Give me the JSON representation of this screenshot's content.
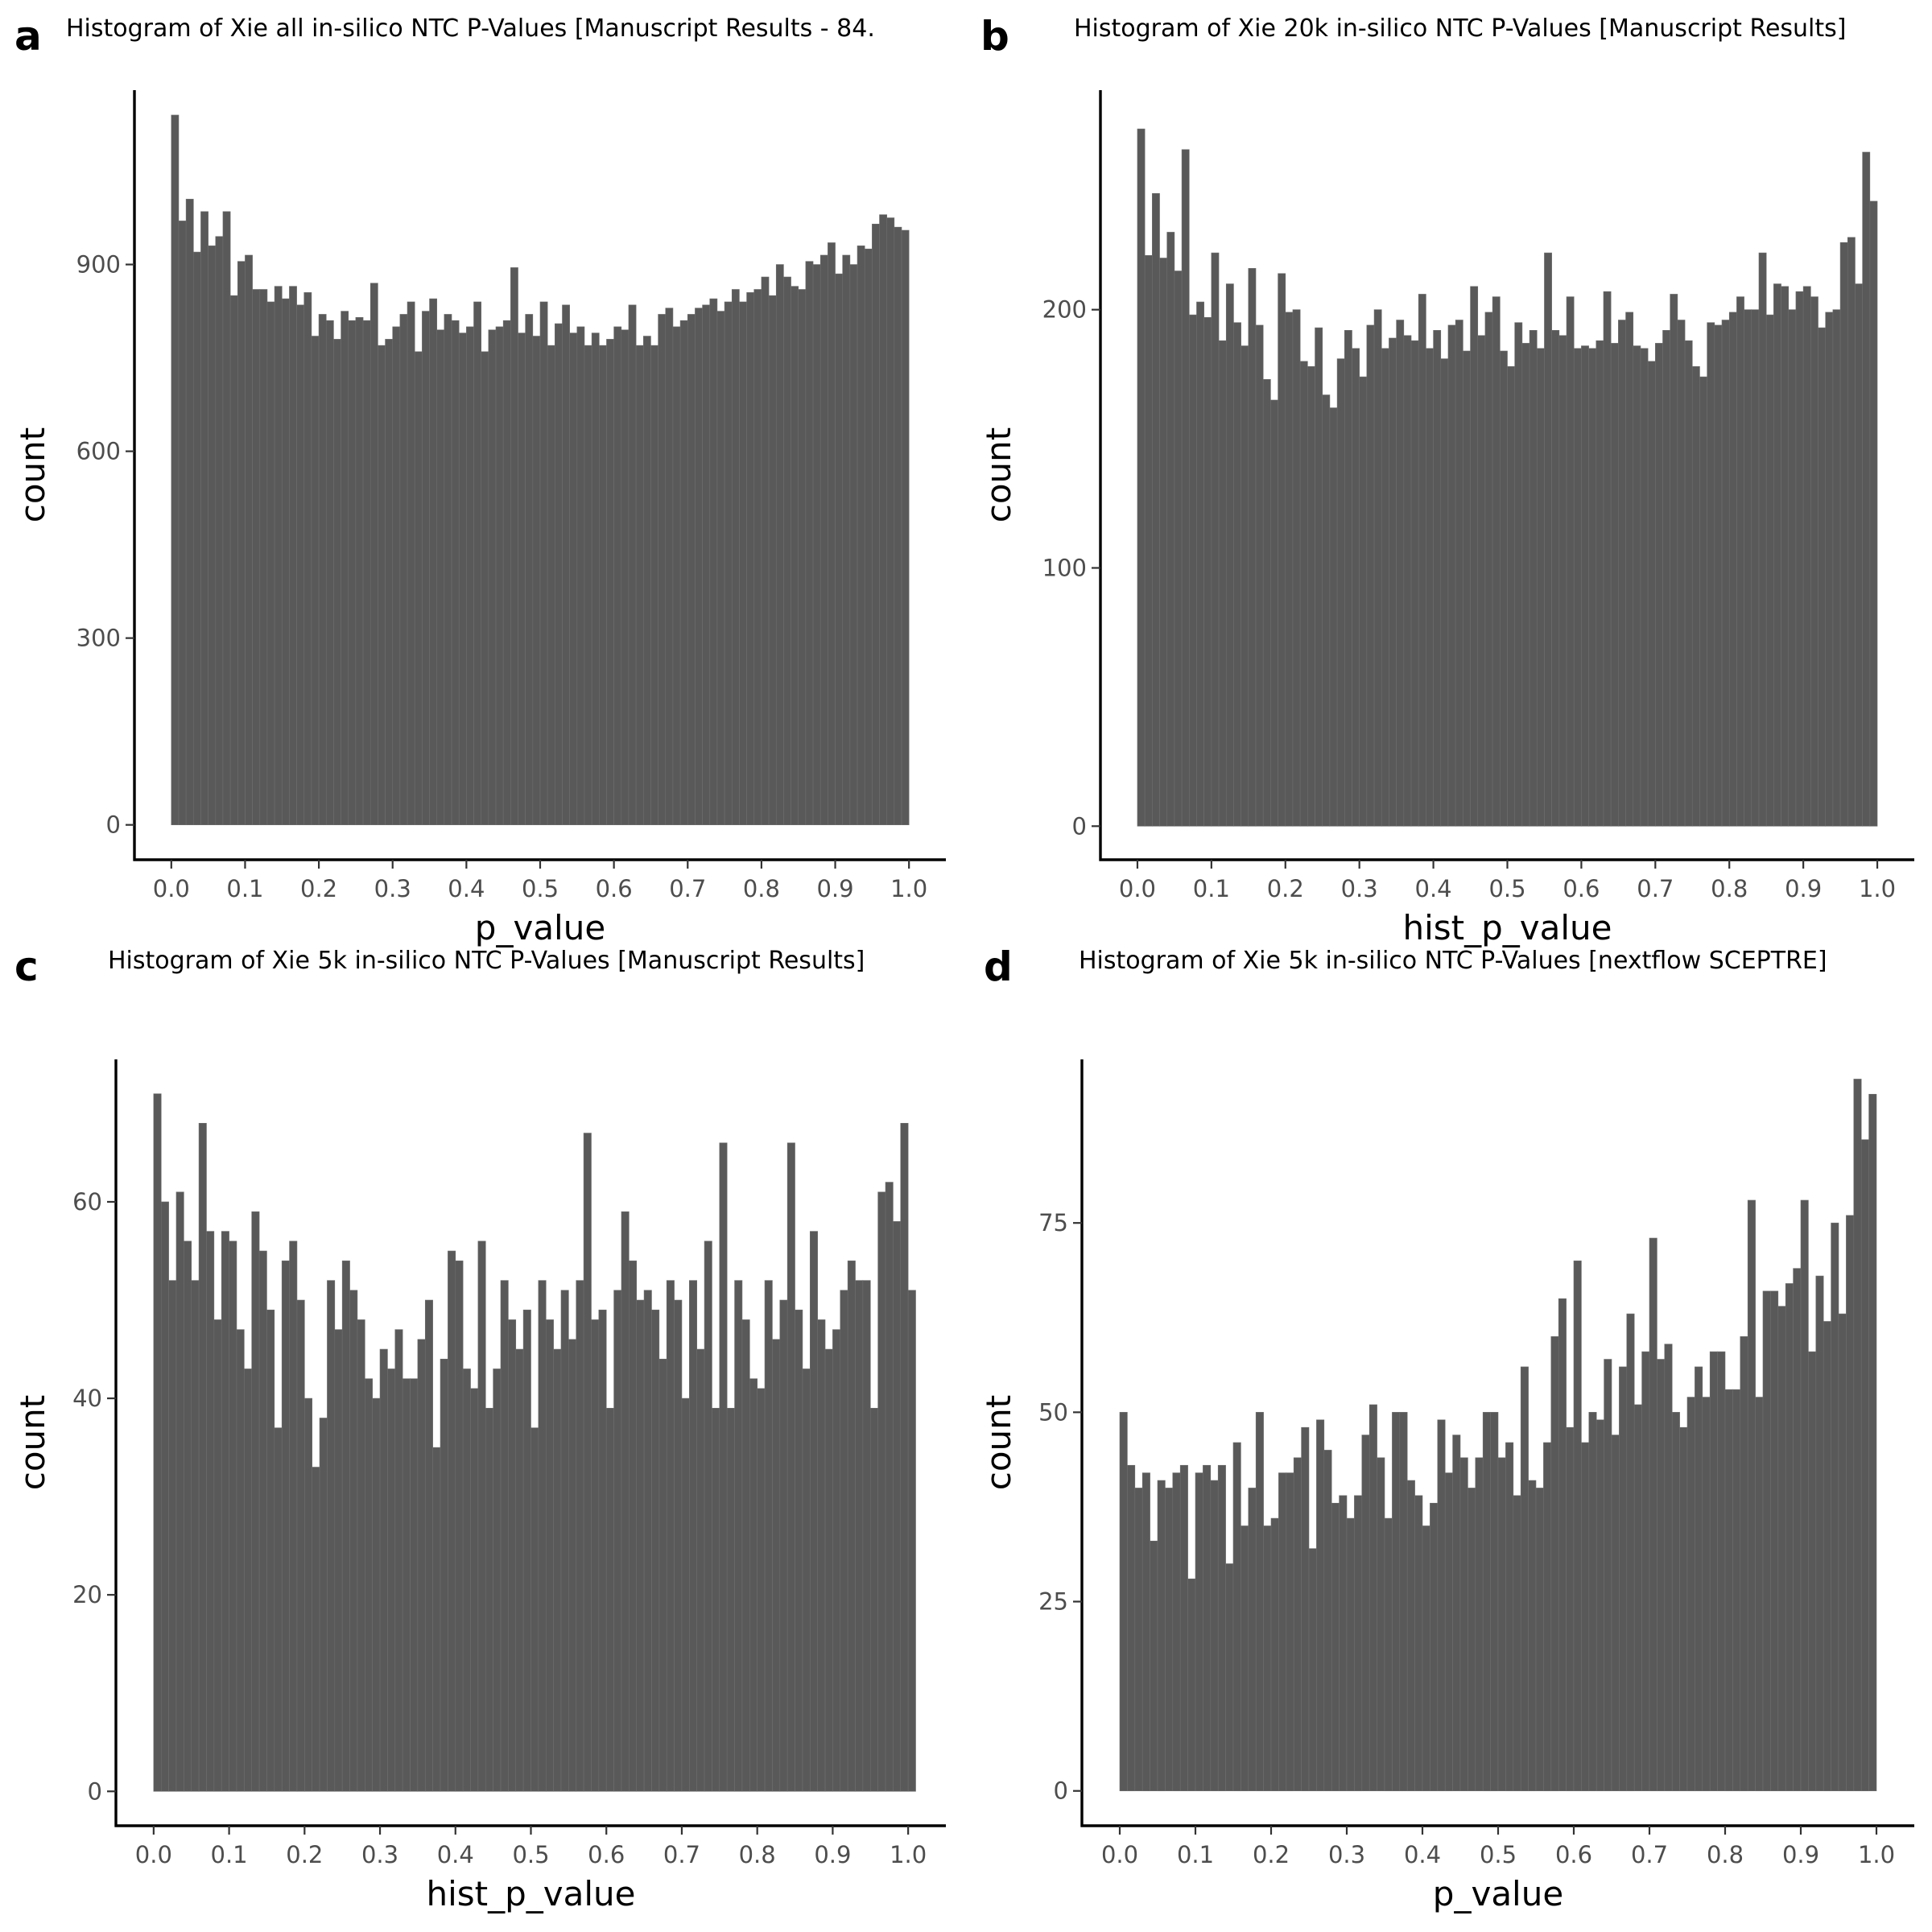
{
  "chart_data": [
    {
      "panel": "a",
      "type": "bar",
      "title": "Histogram of Xie all in-silico NTC P-Values [Manuscript Results - 84.",
      "xlabel": "p_value",
      "ylabel": "count",
      "xlim": [
        -0.05,
        1.05
      ],
      "ylim": [
        -56,
        1180
      ],
      "xticks": [
        0.0,
        0.1,
        0.2,
        0.3,
        0.4,
        0.5,
        0.6,
        0.7,
        0.8,
        0.9,
        1.0
      ],
      "xtick_labels": [
        "0.0",
        "0.1",
        "0.2",
        "0.3",
        "0.4",
        "0.5",
        "0.6",
        "0.7",
        "0.8",
        "0.9",
        "1.0"
      ],
      "yticks": [
        0,
        300,
        600,
        900
      ],
      "ytick_labels": [
        "0",
        "300",
        "600",
        "900"
      ],
      "bin_width": 0.01,
      "values": [
        1140,
        970,
        1005,
        920,
        985,
        930,
        945,
        985,
        850,
        905,
        915,
        860,
        860,
        840,
        865,
        845,
        865,
        835,
        855,
        785,
        820,
        810,
        780,
        825,
        810,
        815,
        810,
        870,
        770,
        780,
        800,
        820,
        840,
        760,
        825,
        845,
        795,
        820,
        810,
        790,
        800,
        840,
        760,
        795,
        800,
        810,
        895,
        790,
        820,
        785,
        840,
        770,
        805,
        835,
        790,
        800,
        770,
        790,
        770,
        780,
        800,
        795,
        835,
        770,
        785,
        770,
        820,
        830,
        800,
        810,
        820,
        830,
        835,
        845,
        825,
        840,
        860,
        840,
        855,
        860,
        880,
        850,
        900,
        880,
        865,
        860,
        905,
        900,
        915,
        935,
        885,
        915,
        900,
        930,
        925,
        965,
        980,
        975,
        960,
        955
      ],
      "grid": false,
      "legend": "none"
    },
    {
      "panel": "b",
      "type": "bar",
      "title": "Histogram of Xie 20k in-silico NTC P-Values [Manuscript Results]",
      "xlabel": "hist_p_value",
      "ylabel": "count",
      "xlim": [
        -0.05,
        1.05
      ],
      "ylim": [
        -13,
        285
      ],
      "xticks": [
        0.0,
        0.1,
        0.2,
        0.3,
        0.4,
        0.5,
        0.6,
        0.7,
        0.8,
        0.9,
        1.0
      ],
      "xtick_labels": [
        "0.0",
        "0.1",
        "0.2",
        "0.3",
        "0.4",
        "0.5",
        "0.6",
        "0.7",
        "0.8",
        "0.9",
        "1.0"
      ],
      "yticks": [
        0,
        100,
        200
      ],
      "ytick_labels": [
        "0",
        "100",
        "200"
      ],
      "bin_width": 0.01,
      "values": [
        270,
        221,
        245,
        220,
        230,
        215,
        262,
        198,
        203,
        197,
        222,
        188,
        210,
        195,
        186,
        216,
        194,
        173,
        165,
        214,
        199,
        200,
        180,
        178,
        193,
        167,
        162,
        181,
        192,
        185,
        174,
        194,
        200,
        185,
        189,
        196,
        190,
        188,
        206,
        185,
        192,
        181,
        194,
        196,
        184,
        209,
        190,
        199,
        205,
        184,
        178,
        195,
        187,
        192,
        185,
        222,
        192,
        190,
        205,
        185,
        186,
        185,
        188,
        207,
        187,
        196,
        199,
        186,
        185,
        180,
        187,
        192,
        206,
        196,
        188,
        178,
        174,
        195,
        194,
        196,
        199,
        205,
        200,
        200,
        222,
        198,
        210,
        209,
        200,
        207,
        209,
        205,
        193,
        199,
        200,
        226,
        228,
        210,
        261,
        242
      ],
      "grid": false,
      "legend": "none"
    },
    {
      "panel": "c",
      "type": "bar",
      "title": "Histogram of Xie 5k in-silico NTC P-Values [Manuscript Results]",
      "xlabel": "hist_p_value",
      "ylabel": "count",
      "xlim": [
        -0.05,
        1.05
      ],
      "ylim": [
        -3.5,
        74.5
      ],
      "xticks": [
        0.0,
        0.1,
        0.2,
        0.3,
        0.4,
        0.5,
        0.6,
        0.7,
        0.8,
        0.9,
        1.0
      ],
      "xtick_labels": [
        "0.0",
        "0.1",
        "0.2",
        "0.3",
        "0.4",
        "0.5",
        "0.6",
        "0.7",
        "0.8",
        "0.9",
        "1.0"
      ],
      "yticks": [
        0,
        20,
        40,
        60
      ],
      "ytick_labels": [
        "0",
        "20",
        "40",
        "60"
      ],
      "bin_width": 0.01,
      "values": [
        71,
        60,
        52,
        61,
        56,
        52,
        68,
        57,
        48,
        57,
        56,
        47,
        43,
        59,
        55,
        49,
        37,
        54,
        56,
        50,
        40,
        33,
        38,
        52,
        47,
        54,
        51,
        48,
        42,
        40,
        45,
        43,
        47,
        42,
        42,
        46,
        50,
        35,
        44,
        55,
        54,
        43,
        41,
        56,
        39,
        43,
        52,
        48,
        45,
        49,
        37,
        52,
        48,
        45,
        51,
        46,
        52,
        67,
        48,
        49,
        39,
        51,
        59,
        54,
        50,
        51,
        49,
        44,
        52,
        50,
        40,
        52,
        45,
        56,
        39,
        66,
        39,
        52,
        48,
        42,
        41,
        52,
        46,
        50,
        66,
        49,
        43,
        57,
        48,
        45,
        47,
        51,
        54,
        52,
        52,
        39,
        61,
        62,
        58,
        68,
        51
      ],
      "grid": false,
      "legend": "none"
    },
    {
      "panel": "d",
      "type": "bar",
      "title": "Histogram of Xie 5k in-silico NTC P-Values [nextflow SCEPTRE]",
      "xlabel": "p_value",
      "ylabel": "count",
      "xlim": [
        -0.05,
        1.05
      ],
      "ylim": [
        -4.6,
        96.6
      ],
      "xticks": [
        0.0,
        0.1,
        0.2,
        0.3,
        0.4,
        0.5,
        0.6,
        0.7,
        0.8,
        0.9,
        1.0
      ],
      "xtick_labels": [
        "0.0",
        "0.1",
        "0.2",
        "0.3",
        "0.4",
        "0.5",
        "0.6",
        "0.7",
        "0.8",
        "0.9",
        "1.0"
      ],
      "yticks": [
        0,
        25,
        50,
        75
      ],
      "ytick_labels": [
        "0",
        "25",
        "50",
        "75"
      ],
      "bin_width": 0.01,
      "values": [
        50,
        43,
        40,
        42,
        33,
        41,
        40,
        42,
        43,
        28,
        42,
        43,
        41,
        43,
        30,
        46,
        35,
        40,
        50,
        35,
        36,
        42,
        42,
        44,
        48,
        32,
        49,
        45,
        38,
        39,
        36,
        39,
        47,
        51,
        44,
        36,
        50,
        50,
        41,
        39,
        35,
        38,
        49,
        42,
        47,
        44,
        40,
        44,
        50,
        50,
        44,
        46,
        39,
        56,
        41,
        40,
        46,
        60,
        65,
        48,
        70,
        46,
        50,
        49,
        57,
        47,
        56,
        63,
        51,
        58,
        73,
        57,
        59,
        50,
        48,
        52,
        56,
        52,
        58,
        58,
        53,
        53,
        60,
        78,
        52,
        66,
        66,
        64,
        67,
        69,
        78,
        58,
        68,
        62,
        75,
        63,
        76,
        94,
        86,
        92
      ],
      "grid": false,
      "legend": "none"
    }
  ]
}
